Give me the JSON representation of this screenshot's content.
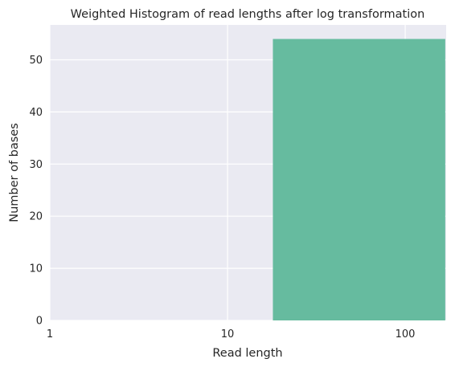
{
  "chart_data": {
    "type": "bar",
    "title": "Weighted Histogram of read lengths after log transformation",
    "xlabel": "Read length",
    "ylabel": "Number of bases",
    "x_scale": "log",
    "xlim": [
      1,
      170
    ],
    "ylim": [
      0,
      56.7
    ],
    "xticks": [
      1,
      10,
      100
    ],
    "xtick_labels": [
      "1",
      "10",
      "100"
    ],
    "yticks": [
      0,
      10,
      20,
      30,
      40,
      50
    ],
    "ytick_labels": [
      "0",
      "10",
      "20",
      "30",
      "40",
      "50"
    ],
    "grid": true,
    "bins": [
      {
        "x_start": 18,
        "x_end": 168,
        "value": 54
      }
    ],
    "colors": {
      "bar": "#66bb9f",
      "plot_background": "#eaeaf2",
      "grid": "#ffffff"
    }
  }
}
